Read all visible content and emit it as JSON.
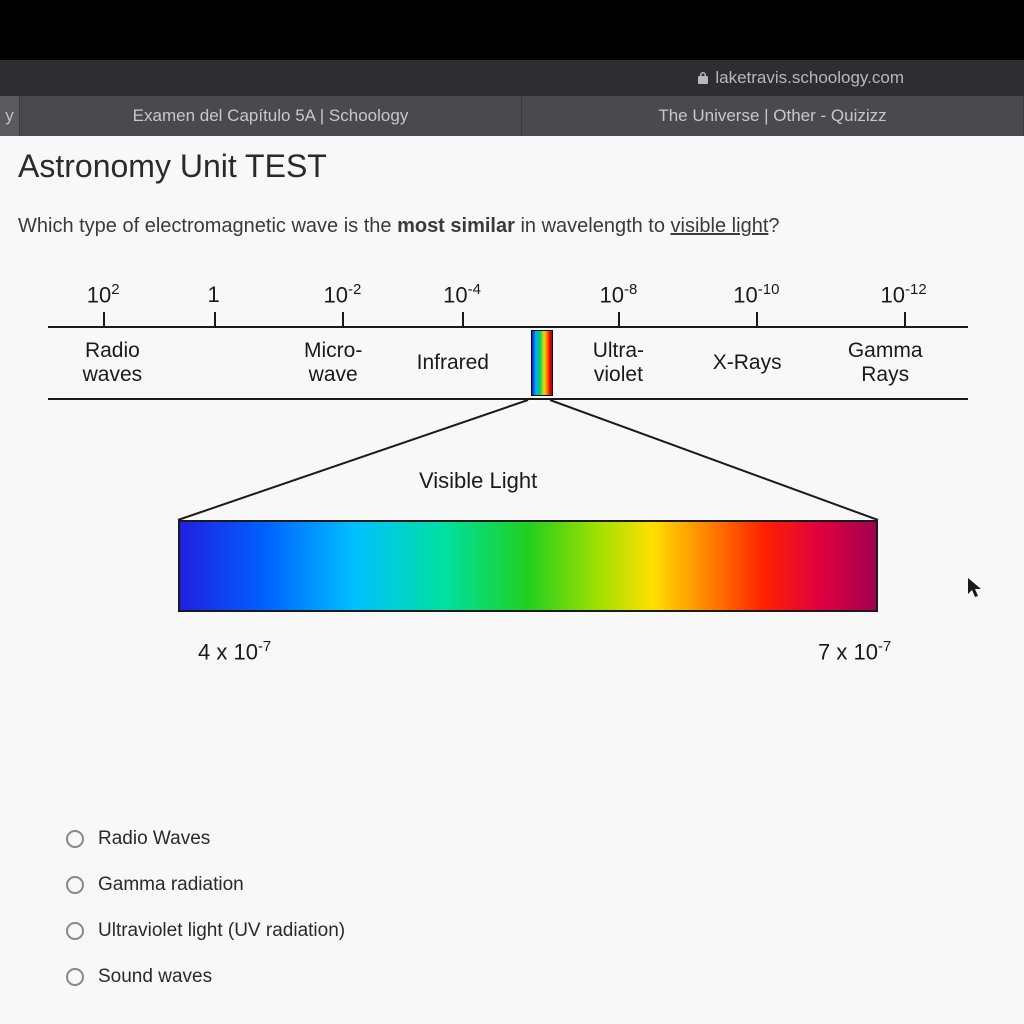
{
  "browser": {
    "url_host": "laketravis.schoology.com",
    "tabs": [
      {
        "label": "Examen del Capítulo 5A | Schoology"
      },
      {
        "label": "The Universe | Other - Quizizz"
      }
    ],
    "left_stub_char": "y"
  },
  "page": {
    "title": "Astronomy Unit TEST",
    "question_prefix": "Which type of electromagnetic wave is the ",
    "question_bold": "most similar",
    "question_mid": " in wavelength to ",
    "question_underline": "visible light",
    "question_suffix": "?"
  },
  "diagram": {
    "scale": [
      {
        "pos_pct": 6,
        "label_html": "10<sup>2</sup>"
      },
      {
        "pos_pct": 18,
        "label_html": "1"
      },
      {
        "pos_pct": 32,
        "label_html": "10<sup>-2</sup>"
      },
      {
        "pos_pct": 45,
        "label_html": "10<sup>-4</sup>"
      },
      {
        "pos_pct": 62,
        "label_html": "10<sup>-8</sup>"
      },
      {
        "pos_pct": 77,
        "label_html": "10<sup>-10</sup>"
      },
      {
        "pos_pct": 93,
        "label_html": "10<sup>-12</sup>"
      }
    ],
    "bands": [
      {
        "pos_pct": 7,
        "label_html": "Radio<br>waves"
      },
      {
        "pos_pct": 31,
        "label_html": "Micro-<br>wave"
      },
      {
        "pos_pct": 44,
        "label_html": "Infrared"
      },
      {
        "pos_pct": 62,
        "label_html": "Ultra-<br>violet"
      },
      {
        "pos_pct": 76,
        "label_html": "X-Rays"
      },
      {
        "pos_pct": 91,
        "label_html": "Gamma<br>Rays"
      }
    ],
    "visible_marker_pos_pct": 52.5,
    "visible_light_label": "Visible Light",
    "range_left_html": "4 x 10<sup>-7</sup>",
    "range_right_html": "7 x 10<sup>-7</sup>",
    "spectrum_colors": [
      "#2020e0",
      "#0060ff",
      "#00c0ff",
      "#00e0a0",
      "#20d020",
      "#a0e000",
      "#ffe000",
      "#ff8000",
      "#ff2000",
      "#e00040",
      "#a00050"
    ],
    "line_color": "#1a1a1a"
  },
  "options": [
    {
      "label": "Radio Waves"
    },
    {
      "label": "Gamma radiation"
    },
    {
      "label": "Ultraviolet light (UV radiation)"
    },
    {
      "label": "Sound waves"
    }
  ]
}
